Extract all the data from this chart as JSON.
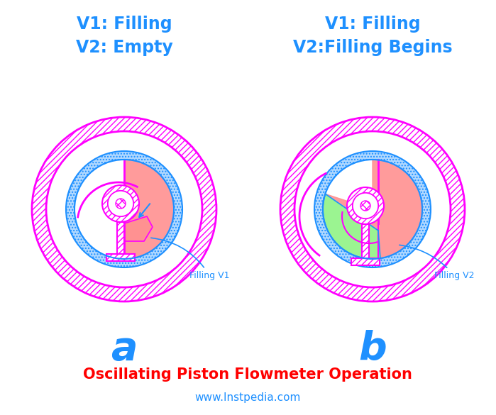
{
  "title": "Oscillating Piston Flowmeter Operation",
  "website": "www.Instpedia.com",
  "left_title1": "V1: Filling",
  "left_title2": "V2: Empty",
  "right_title1": "V1: Filling",
  "right_title2": "V2:Filling Begins",
  "label_a": "a",
  "label_b": "b",
  "label_filling_v1": "Filling V1",
  "label_filling_v2": "Filling V2",
  "color_magenta": "#FF00FF",
  "color_blue": "#1E90FF",
  "color_cyan_fill": "#B0D8FF",
  "color_red_fill": "#FF9090",
  "color_green_fill": "#90FF90",
  "color_main_title": "#FF0000",
  "bg_color": "#FFFFFF",
  "fig_w": 6.99,
  "fig_h": 5.85,
  "dpi": 100
}
